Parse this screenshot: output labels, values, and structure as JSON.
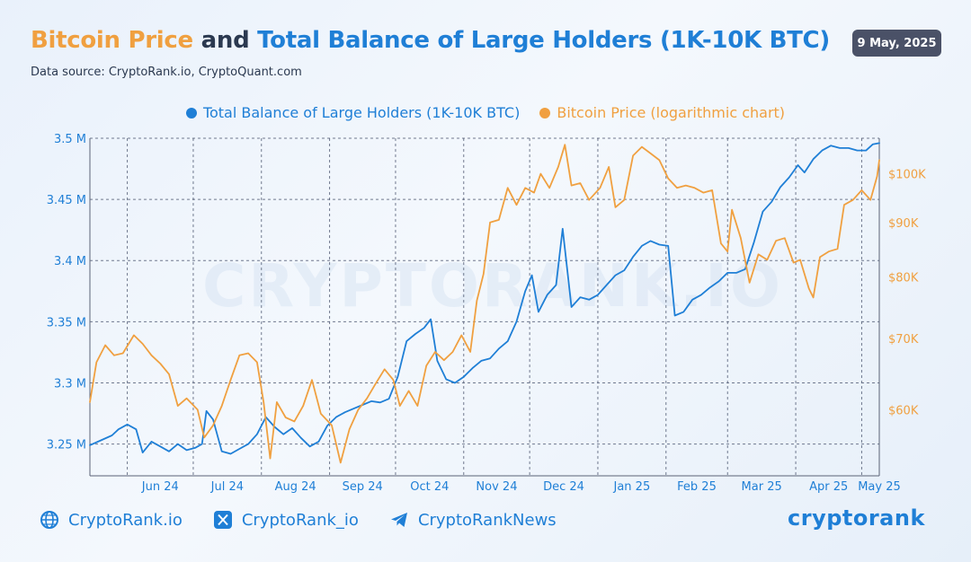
{
  "header": {
    "title_part1": "Bitcoin Price",
    "title_part2": "and",
    "title_part3": "Total Balance of Large Holders (1K-10K BTC)",
    "source": "Data source: CryptoRank.io, CryptoQuant.com",
    "date": "9 May, 2025"
  },
  "legend": {
    "blue_label": "Total Balance of Large Holders (1K-10K BTC)",
    "orange_label": "Bitcoin Price (logarithmic chart)"
  },
  "footer": {
    "website": "CryptoRank.io",
    "x_handle": "CryptoRank_io",
    "telegram": "CryptoRankNews",
    "brand": "cryptorank",
    "watermark": "CRYPTORANK.IO"
  },
  "colors": {
    "blue": "#1f7fd6",
    "orange": "#f0a040"
  },
  "chart_data": {
    "type": "line",
    "title": "Bitcoin Price and Total Balance of Large Holders (1K-10K BTC)",
    "x_tick_labels": [
      "Jun 24",
      "Jul 24",
      "Aug 24",
      "Sep 24",
      "Oct 24",
      "Nov 24",
      "Dec 24",
      "Jan 25",
      "Feb 25",
      "Mar 25",
      "Apr 25",
      "May 25"
    ],
    "x_range": [
      "2024-05-15",
      "2025-05-09"
    ],
    "y_left": {
      "tick_labels": [
        "3.25 M",
        "3.3 M",
        "3.35 M",
        "3.4 M",
        "3.45 M",
        "3.5 M"
      ],
      "ticks": [
        3.25,
        3.3,
        3.35,
        3.4,
        3.45,
        3.5
      ],
      "range": [
        3.224,
        3.5
      ],
      "unit": "M BTC"
    },
    "y_right": {
      "tick_labels": [
        "$60K",
        "$70K",
        "$80K",
        "$90K",
        "$100K"
      ],
      "ticks": [
        60000,
        70000,
        80000,
        90000,
        100000
      ],
      "scale": "log",
      "range": [
        52000,
        108000
      ]
    },
    "grid": true,
    "legend_position": "top-center",
    "series": [
      {
        "name": "Total Balance of Large Holders (1K-10K BTC)",
        "color": "#1f7fd6",
        "axis": "left",
        "points": [
          [
            "2024-05-15",
            3.249
          ],
          [
            "2024-05-20",
            3.253
          ],
          [
            "2024-05-25",
            3.257
          ],
          [
            "2024-05-28",
            3.262
          ],
          [
            "2024-06-01",
            3.266
          ],
          [
            "2024-06-05",
            3.262
          ],
          [
            "2024-06-08",
            3.243
          ],
          [
            "2024-06-12",
            3.252
          ],
          [
            "2024-06-16",
            3.248
          ],
          [
            "2024-06-20",
            3.244
          ],
          [
            "2024-06-24",
            3.25
          ],
          [
            "2024-06-28",
            3.245
          ],
          [
            "2024-07-02",
            3.247
          ],
          [
            "2024-07-05",
            3.25
          ],
          [
            "2024-07-07",
            3.277
          ],
          [
            "2024-07-10",
            3.27
          ],
          [
            "2024-07-14",
            3.244
          ],
          [
            "2024-07-18",
            3.242
          ],
          [
            "2024-07-22",
            3.246
          ],
          [
            "2024-07-26",
            3.25
          ],
          [
            "2024-07-30",
            3.258
          ],
          [
            "2024-08-03",
            3.272
          ],
          [
            "2024-08-07",
            3.264
          ],
          [
            "2024-08-11",
            3.258
          ],
          [
            "2024-08-15",
            3.263
          ],
          [
            "2024-08-19",
            3.255
          ],
          [
            "2024-08-23",
            3.248
          ],
          [
            "2024-08-27",
            3.252
          ],
          [
            "2024-08-31",
            3.265
          ],
          [
            "2024-09-04",
            3.272
          ],
          [
            "2024-09-08",
            3.276
          ],
          [
            "2024-09-12",
            3.279
          ],
          [
            "2024-09-16",
            3.282
          ],
          [
            "2024-09-20",
            3.285
          ],
          [
            "2024-09-24",
            3.284
          ],
          [
            "2024-09-28",
            3.287
          ],
          [
            "2024-10-02",
            3.305
          ],
          [
            "2024-10-06",
            3.334
          ],
          [
            "2024-10-10",
            3.34
          ],
          [
            "2024-10-14",
            3.345
          ],
          [
            "2024-10-17",
            3.352
          ],
          [
            "2024-10-20",
            3.318
          ],
          [
            "2024-10-24",
            3.303
          ],
          [
            "2024-10-28",
            3.3
          ],
          [
            "2024-11-01",
            3.305
          ],
          [
            "2024-11-05",
            3.312
          ],
          [
            "2024-11-09",
            3.318
          ],
          [
            "2024-11-13",
            3.32
          ],
          [
            "2024-11-17",
            3.328
          ],
          [
            "2024-11-21",
            3.334
          ],
          [
            "2024-11-25",
            3.35
          ],
          [
            "2024-11-29",
            3.375
          ],
          [
            "2024-12-02",
            3.388
          ],
          [
            "2024-12-05",
            3.358
          ],
          [
            "2024-12-09",
            3.372
          ],
          [
            "2024-12-13",
            3.38
          ],
          [
            "2024-12-16",
            3.426
          ],
          [
            "2024-12-20",
            3.362
          ],
          [
            "2024-12-24",
            3.37
          ],
          [
            "2024-12-28",
            3.368
          ],
          [
            "2025-01-01",
            3.372
          ],
          [
            "2025-01-05",
            3.38
          ],
          [
            "2025-01-09",
            3.388
          ],
          [
            "2025-01-13",
            3.392
          ],
          [
            "2025-01-17",
            3.403
          ],
          [
            "2025-01-21",
            3.412
          ],
          [
            "2025-01-25",
            3.416
          ],
          [
            "2025-01-29",
            3.413
          ],
          [
            "2025-02-02",
            3.412
          ],
          [
            "2025-02-05",
            3.355
          ],
          [
            "2025-02-09",
            3.358
          ],
          [
            "2025-02-13",
            3.368
          ],
          [
            "2025-02-17",
            3.372
          ],
          [
            "2025-02-21",
            3.378
          ],
          [
            "2025-02-25",
            3.383
          ],
          [
            "2025-03-01",
            3.39
          ],
          [
            "2025-03-05",
            3.39
          ],
          [
            "2025-03-09",
            3.393
          ],
          [
            "2025-03-13",
            3.415
          ],
          [
            "2025-03-17",
            3.44
          ],
          [
            "2025-03-21",
            3.448
          ],
          [
            "2025-03-25",
            3.46
          ],
          [
            "2025-03-29",
            3.468
          ],
          [
            "2025-04-02",
            3.478
          ],
          [
            "2025-04-05",
            3.472
          ],
          [
            "2025-04-09",
            3.483
          ],
          [
            "2025-04-13",
            3.49
          ],
          [
            "2025-04-17",
            3.494
          ],
          [
            "2025-04-21",
            3.492
          ],
          [
            "2025-04-25",
            3.492
          ],
          [
            "2025-04-29",
            3.49
          ],
          [
            "2025-05-03",
            3.49
          ],
          [
            "2025-05-06",
            3.495
          ],
          [
            "2025-05-09",
            3.496
          ]
        ]
      },
      {
        "name": "Bitcoin Price (logarithmic chart)",
        "color": "#f0a040",
        "axis": "right",
        "points": [
          [
            "2024-05-15",
            61000
          ],
          [
            "2024-05-18",
            66500
          ],
          [
            "2024-05-22",
            69000
          ],
          [
            "2024-05-26",
            67500
          ],
          [
            "2024-05-30",
            67800
          ],
          [
            "2024-06-04",
            70500
          ],
          [
            "2024-06-08",
            69200
          ],
          [
            "2024-06-12",
            67500
          ],
          [
            "2024-06-16",
            66300
          ],
          [
            "2024-06-20",
            64800
          ],
          [
            "2024-06-24",
            60500
          ],
          [
            "2024-06-28",
            61500
          ],
          [
            "2024-07-03",
            60000
          ],
          [
            "2024-07-06",
            56500
          ],
          [
            "2024-07-10",
            58000
          ],
          [
            "2024-07-14",
            60500
          ],
          [
            "2024-07-18",
            64000
          ],
          [
            "2024-07-22",
            67500
          ],
          [
            "2024-07-26",
            67800
          ],
          [
            "2024-07-30",
            66500
          ],
          [
            "2024-08-02",
            61000
          ],
          [
            "2024-08-05",
            54000
          ],
          [
            "2024-08-08",
            61000
          ],
          [
            "2024-08-12",
            59000
          ],
          [
            "2024-08-16",
            58500
          ],
          [
            "2024-08-20",
            60500
          ],
          [
            "2024-08-24",
            64000
          ],
          [
            "2024-08-28",
            59500
          ],
          [
            "2024-09-02",
            58000
          ],
          [
            "2024-09-06",
            53500
          ],
          [
            "2024-09-10",
            57500
          ],
          [
            "2024-09-14",
            60000
          ],
          [
            "2024-09-18",
            61500
          ],
          [
            "2024-09-22",
            63500
          ],
          [
            "2024-09-26",
            65500
          ],
          [
            "2024-09-30",
            64000
          ],
          [
            "2024-10-03",
            60500
          ],
          [
            "2024-10-07",
            62500
          ],
          [
            "2024-10-11",
            60500
          ],
          [
            "2024-10-15",
            66000
          ],
          [
            "2024-10-19",
            68000
          ],
          [
            "2024-10-23",
            66800
          ],
          [
            "2024-10-27",
            68000
          ],
          [
            "2024-10-31",
            70500
          ],
          [
            "2024-11-04",
            68000
          ],
          [
            "2024-11-07",
            76000
          ],
          [
            "2024-11-10",
            80500
          ],
          [
            "2024-11-13",
            90000
          ],
          [
            "2024-11-17",
            90500
          ],
          [
            "2024-11-21",
            97000
          ],
          [
            "2024-11-25",
            93500
          ],
          [
            "2024-11-29",
            97000
          ],
          [
            "2024-12-03",
            96000
          ],
          [
            "2024-12-06",
            100000
          ],
          [
            "2024-12-10",
            97000
          ],
          [
            "2024-12-14",
            101500
          ],
          [
            "2024-12-17",
            106500
          ],
          [
            "2024-12-20",
            97500
          ],
          [
            "2024-12-24",
            98000
          ],
          [
            "2024-12-28",
            94500
          ],
          [
            "2025-01-02",
            97000
          ],
          [
            "2025-01-06",
            101500
          ],
          [
            "2025-01-09",
            93000
          ],
          [
            "2025-01-13",
            94500
          ],
          [
            "2025-01-17",
            104000
          ],
          [
            "2025-01-21",
            106000
          ],
          [
            "2025-01-25",
            104500
          ],
          [
            "2025-01-29",
            103000
          ],
          [
            "2025-02-02",
            99000
          ],
          [
            "2025-02-06",
            97000
          ],
          [
            "2025-02-10",
            97500
          ],
          [
            "2025-02-14",
            97000
          ],
          [
            "2025-02-18",
            96000
          ],
          [
            "2025-02-22",
            96500
          ],
          [
            "2025-02-26",
            86000
          ],
          [
            "2025-03-01",
            84500
          ],
          [
            "2025-03-03",
            92500
          ],
          [
            "2025-03-07",
            87000
          ],
          [
            "2025-03-11",
            79000
          ],
          [
            "2025-03-15",
            84000
          ],
          [
            "2025-03-19",
            83000
          ],
          [
            "2025-03-23",
            86500
          ],
          [
            "2025-03-27",
            87000
          ],
          [
            "2025-03-31",
            82500
          ],
          [
            "2025-04-03",
            83000
          ],
          [
            "2025-04-07",
            78000
          ],
          [
            "2025-04-09",
            76500
          ],
          [
            "2025-04-12",
            83500
          ],
          [
            "2025-04-16",
            84500
          ],
          [
            "2025-04-20",
            85000
          ],
          [
            "2025-04-23",
            93500
          ],
          [
            "2025-04-27",
            94500
          ],
          [
            "2025-05-01",
            96500
          ],
          [
            "2025-05-05",
            94500
          ],
          [
            "2025-05-08",
            99500
          ],
          [
            "2025-05-09",
            103000
          ]
        ]
      }
    ]
  }
}
